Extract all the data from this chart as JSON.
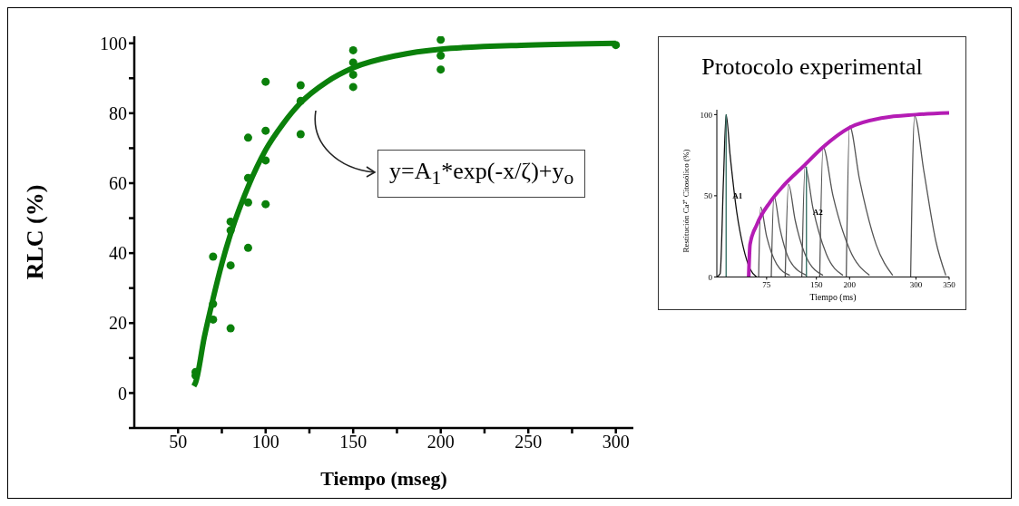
{
  "chart_data": [
    {
      "type": "scatter",
      "xlabel": "Tiempo (mseg)",
      "ylabel": "RLC (%)",
      "xlim": [
        25,
        310
      ],
      "ylim": [
        -10,
        102
      ],
      "xticks": [
        50,
        {
          "value": 75,
          "label": null
        },
        100,
        {
          "value": 125,
          "label": null
        },
        150,
        {
          "value": 175,
          "label": null
        },
        200,
        {
          "value": 225,
          "label": null
        },
        250,
        {
          "value": 275,
          "label": null
        },
        300
      ],
      "yticks": [
        {
          "value": -10,
          "label": null
        },
        0,
        {
          "value": 10,
          "label": null
        },
        20,
        {
          "value": 30,
          "label": null
        },
        40,
        {
          "value": 50,
          "label": null
        },
        60,
        {
          "value": 70,
          "label": null
        },
        80,
        {
          "value": 90,
          "label": null
        },
        100
      ],
      "series": [
        {
          "color": "#0b800b",
          "marker": "circle",
          "x": [
            60,
            60,
            70,
            70,
            70,
            80,
            80,
            80,
            80,
            90,
            90,
            90,
            90,
            100,
            100,
            100,
            100,
            120,
            120,
            120,
            150,
            150,
            150,
            150,
            200,
            200,
            200,
            300
          ],
          "values": [
            6,
            5,
            39,
            25.5,
            21,
            49,
            46.5,
            36.5,
            18.5,
            73,
            61.5,
            54.5,
            41.5,
            89,
            75,
            66.5,
            54,
            88,
            83.5,
            74,
            98,
            94.5,
            91,
            87.5,
            101,
            96.5,
            92.5,
            99.5
          ]
        },
        {
          "type": "line",
          "color": "#0b800b",
          "marker": "none",
          "x": [
            59,
            60,
            65,
            70,
            75,
            80,
            90,
            100,
            110,
            120,
            135,
            150,
            175,
            200,
            250,
            300
          ],
          "values": [
            2,
            3,
            16,
            27,
            37,
            45.5,
            59,
            69.5,
            77,
            83,
            89,
            93,
            96.5,
            98.3,
            99.5,
            100
          ]
        }
      ],
      "annotations": [
        "y=A$_{1}$*exp(-x/ζ)+y$_{o}$"
      ]
    },
    {
      "type": "line",
      "title": "Protocolo experimental",
      "xlabel": "Tiempo (ms)",
      "ylabel": "Restitución Ca²⁺ Citosólico (%)",
      "xlim": [
        0,
        350
      ],
      "ylim": [
        0,
        103
      ],
      "xticks": [
        75,
        150,
        200,
        300,
        350
      ],
      "yticks": [
        0,
        50,
        100
      ],
      "series": [
        {
          "color": "#111111",
          "x": [
            0,
            5,
            10,
            14,
            20,
            30,
            40,
            50,
            60
          ],
          "values": [
            0,
            2,
            60,
            100,
            75,
            40,
            18,
            5,
            0
          ]
        },
        {
          "color": "#555555",
          "x": [
            63,
            66,
            75,
            90,
            110
          ],
          "values": [
            0,
            43,
            25,
            8,
            1
          ]
        },
        {
          "color": "#555555",
          "x": [
            82,
            86,
            95,
            110,
            135
          ],
          "values": [
            0,
            50,
            30,
            10,
            1
          ]
        },
        {
          "color": "#555555",
          "x": [
            103,
            108,
            118,
            135,
            160
          ],
          "values": [
            0,
            57,
            35,
            12,
            1
          ]
        },
        {
          "color": "#555555",
          "x": [
            128,
            133,
            145,
            165,
            190
          ],
          "values": [
            0,
            68,
            42,
            14,
            1
          ]
        },
        {
          "color": "#555555",
          "x": [
            155,
            160,
            175,
            200,
            230
          ],
          "values": [
            0,
            80,
            50,
            17,
            1
          ]
        },
        {
          "color": "#555555",
          "x": [
            195,
            200,
            215,
            240,
            265
          ],
          "values": [
            0,
            93,
            60,
            20,
            1
          ]
        },
        {
          "color": "#555555",
          "x": [
            292,
            298,
            312,
            330,
            345
          ],
          "values": [
            0,
            99,
            65,
            22,
            1
          ]
        },
        {
          "color": "#2e6b5e",
          "x": [
            14,
            14
          ],
          "values": [
            0,
            100
          ]
        },
        {
          "color": "#2e6b5e",
          "x": [
            135,
            135
          ],
          "values": [
            0,
            68
          ]
        },
        {
          "color": "#b41cb4",
          "x": [
            48,
            50,
            60,
            80,
            100,
            130,
            160,
            200,
            250,
            300,
            350
          ],
          "values": [
            0,
            20,
            32,
            46,
            56,
            68,
            80,
            92,
            98,
            100,
            101
          ]
        }
      ],
      "annotations": [
        {
          "text": "A1",
          "x": 14,
          "y": 50
        },
        {
          "text": "A2",
          "x": 135,
          "y": 40
        }
      ]
    }
  ]
}
